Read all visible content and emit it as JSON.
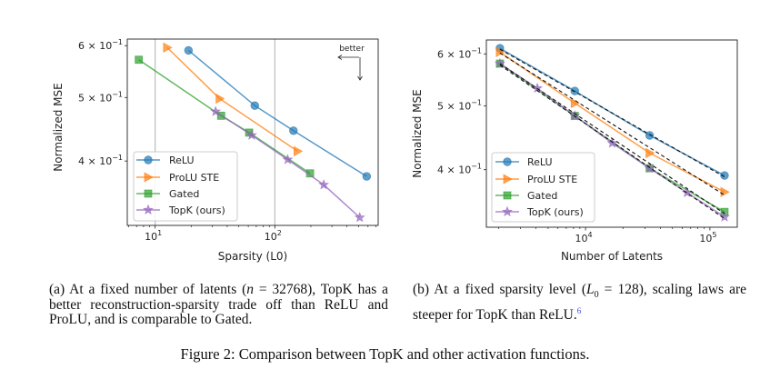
{
  "colors": {
    "ReLU": "#1f77b4",
    "ProLU STE": "#ff7f0e",
    "Gated": "#2ca02c",
    "TopK (ours)": "#9467bd",
    "fit": "#111111"
  },
  "chart_data": [
    {
      "type": "line",
      "xlabel": "Sparsity (L0)",
      "ylabel": "Normalized MSE",
      "xscale": "log",
      "yscale": "log",
      "xlim": [
        5.85,
        730
      ],
      "ylim": [
        0.319,
        0.614
      ],
      "grid": "x-major",
      "legend": "lower-left",
      "xticks": [
        {
          "value": 10,
          "base": "10",
          "exp": "1"
        },
        {
          "value": 100,
          "base": "10",
          "exp": "2"
        }
      ],
      "yticks": [
        {
          "value": 0.4,
          "base": "4 × 10",
          "exp": "−1"
        },
        {
          "value": 0.5,
          "base": "5 × 10",
          "exp": "−1"
        },
        {
          "value": 0.6,
          "base": "6 × 10",
          "exp": "−1"
        }
      ],
      "annotation": "better",
      "series": [
        {
          "name": "ReLU",
          "marker": "circle",
          "x": [
            19,
            68,
            143,
            585
          ],
          "y": [
            0.59,
            0.486,
            0.445,
            0.379
          ]
        },
        {
          "name": "ProLU STE",
          "marker": "triangle-right",
          "x": [
            12.6,
            34.6,
            155
          ],
          "y": [
            0.596,
            0.498,
            0.414
          ]
        },
        {
          "name": "Gated",
          "marker": "square",
          "x": [
            7.3,
            35.6,
            61,
            197
          ],
          "y": [
            0.571,
            0.469,
            0.442,
            0.383
          ]
        },
        {
          "name": "TopK (ours)",
          "marker": "star",
          "x": [
            32,
            64,
            128,
            256,
            512
          ],
          "y": [
            0.476,
            0.438,
            0.402,
            0.368,
            0.328
          ]
        }
      ]
    },
    {
      "type": "line",
      "xlabel": "Number of Latents",
      "ylabel": "Normalized MSE",
      "xscale": "log",
      "yscale": "log",
      "xlim": [
        1594,
        166000
      ],
      "ylim": [
        0.327,
        0.63
      ],
      "grid": "none",
      "legend": "lower-left",
      "xticks": [
        {
          "value": 10000,
          "base": "10",
          "exp": "4"
        },
        {
          "value": 100000,
          "base": "10",
          "exp": "5"
        }
      ],
      "yticks": [
        {
          "value": 0.4,
          "base": "4 × 10",
          "exp": "−1"
        },
        {
          "value": 0.5,
          "base": "5 × 10",
          "exp": "−1"
        },
        {
          "value": 0.6,
          "base": "6 × 10",
          "exp": "−1"
        }
      ],
      "series": [
        {
          "name": "ReLU",
          "marker": "circle",
          "x": [
            2048,
            8192,
            32768,
            131072
          ],
          "y": [
            0.612,
            0.527,
            0.451,
            0.392
          ]
        },
        {
          "name": "ProLU STE",
          "marker": "triangle-right",
          "x": [
            2048,
            8192,
            32768,
            131072
          ],
          "y": [
            0.604,
            0.505,
            0.424,
            0.37
          ]
        },
        {
          "name": "Gated",
          "marker": "square",
          "x": [
            2048,
            8192,
            32768,
            131072
          ],
          "y": [
            0.58,
            0.483,
            0.402,
            0.345
          ]
        },
        {
          "name": "TopK (ours)",
          "marker": "star",
          "x": [
            2048,
            4096,
            8192,
            16384,
            32768,
            65536,
            131072
          ],
          "y": [
            0.58,
            0.532,
            0.483,
            0.439,
            0.402,
            0.369,
            0.339
          ]
        }
      ],
      "fits": [
        {
          "of": "ReLU",
          "style": "dashed",
          "x": [
            2048,
            131072
          ],
          "y": [
            0.61,
            0.39
          ]
        },
        {
          "of": "ProLU STE",
          "style": "dashed",
          "x": [
            2048,
            131072
          ],
          "y": [
            0.602,
            0.366
          ]
        },
        {
          "of": "Gated",
          "style": "dashed",
          "x": [
            2048,
            131072
          ],
          "y": [
            0.58,
            0.343
          ]
        },
        {
          "of": "TopK (ours)",
          "style": "dashed",
          "x": [
            2048,
            131072
          ],
          "y": [
            0.577,
            0.337
          ]
        }
      ]
    }
  ],
  "captions": {
    "a": {
      "p1": "(a) At a fixed number of latents (",
      "var": "n",
      "p2": " = 32768), TopK has a better reconstruction-sparsity trade off than ReLU and ProLU, and is comparable to Gated."
    },
    "b": {
      "p1": "(b) At a fixed sparsity level (",
      "var": "L",
      "sub": "0",
      "p2": " = 128), scaling laws are steeper for TopK than ReLU.",
      "footnote": "6"
    },
    "figure": "Figure 2: Comparison between TopK and other activation functions."
  }
}
